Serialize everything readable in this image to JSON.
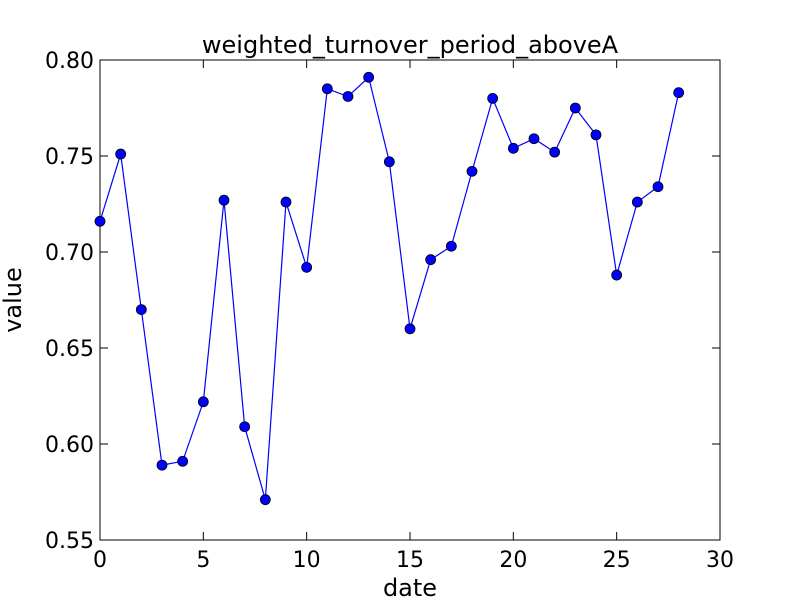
{
  "chart_data": {
    "type": "line",
    "title": "weighted_turnover_period_aboveA",
    "xlabel": "date",
    "ylabel": "value",
    "xlim": [
      0,
      30
    ],
    "ylim": [
      0.55,
      0.8
    ],
    "xticks": [
      0,
      5,
      10,
      15,
      20,
      25,
      30
    ],
    "xtick_labels": [
      "0",
      "5",
      "10",
      "15",
      "20",
      "25",
      "30"
    ],
    "yticks": [
      0.55,
      0.6,
      0.65,
      0.7,
      0.75,
      0.8
    ],
    "ytick_labels": [
      "0.55",
      "0.60",
      "0.65",
      "0.70",
      "0.75",
      "0.80"
    ],
    "grid": false,
    "series": [
      {
        "color": "#0000ff",
        "marker": "circle",
        "x": [
          0,
          1,
          2,
          3,
          4,
          5,
          6,
          7,
          8,
          9,
          10,
          11,
          12,
          13,
          14,
          15,
          16,
          17,
          18,
          19,
          20,
          21,
          22,
          23,
          24,
          25,
          26,
          27,
          28
        ],
        "values": [
          0.716,
          0.751,
          0.67,
          0.589,
          0.591,
          0.622,
          0.727,
          0.609,
          0.571,
          0.726,
          0.692,
          0.785,
          0.781,
          0.791,
          0.747,
          0.66,
          0.696,
          0.703,
          0.742,
          0.78,
          0.754,
          0.759,
          0.752,
          0.775,
          0.761,
          0.688,
          0.726,
          0.734,
          0.783
        ]
      }
    ]
  }
}
